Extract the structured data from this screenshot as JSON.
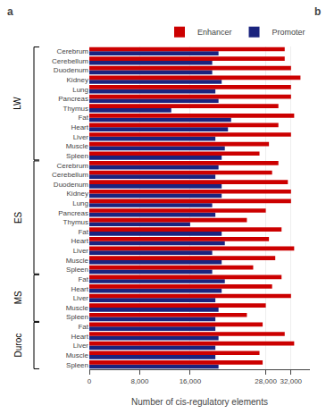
{
  "chart_data": {
    "type": "bar",
    "orientation": "horizontal",
    "categories": [
      "Spleen",
      "Muscle",
      "Liver",
      "Heart",
      "Fat",
      "Spleen",
      "Muscle",
      "Liver",
      "Heart",
      "Fat",
      "Spleen",
      "Muscle",
      "Liver",
      "Heart",
      "Fat",
      "Thymus",
      "Pancreas",
      "Lung",
      "Kidney",
      "Duodenum",
      "Cerebellum",
      "Cerebrum",
      "Spleen",
      "Muscle",
      "Liver",
      "Heart",
      "Fat",
      "Thymus",
      "Pancreas",
      "Lung",
      "Kidney",
      "Duodenum",
      "Cerebellum",
      "Cerebrum"
    ],
    "groups": [
      "Duroc",
      "Duroc",
      "Duroc",
      "Duroc",
      "Duroc",
      "MS",
      "MS",
      "MS",
      "MS",
      "MS",
      "ES",
      "ES",
      "ES",
      "ES",
      "ES",
      "ES",
      "ES",
      "ES",
      "ES",
      "ES",
      "ES",
      "ES",
      "LW",
      "LW",
      "LW",
      "LW",
      "LW",
      "LW",
      "LW",
      "LW",
      "LW",
      "LW",
      "LW",
      "LW"
    ],
    "series": [
      {
        "name": "Enhancer",
        "color": "#CC0000",
        "values": [
          27500,
          27000,
          32500,
          31000,
          27500,
          25000,
          28000,
          32000,
          29000,
          30500,
          26000,
          29500,
          32500,
          28500,
          30500,
          25000,
          28000,
          32000,
          32000,
          31500,
          29000,
          30000,
          27000,
          28500,
          32000,
          30000,
          32500,
          30000,
          32000,
          32000,
          33500,
          32000,
          31000,
          31000
        ]
      },
      {
        "name": "Promoter",
        "color": "#1a237e",
        "values": [
          20500,
          20000,
          20000,
          20500,
          20000,
          20000,
          20500,
          20000,
          21000,
          21500,
          19500,
          21000,
          19500,
          21500,
          21000,
          16000,
          20000,
          19500,
          21000,
          21000,
          20000,
          20500,
          21000,
          21500,
          20000,
          22000,
          22500,
          13000,
          20500,
          20000,
          21000,
          19500,
          19500,
          20500
        ]
      }
    ],
    "x_label": "Number of cis-regulatory elements",
    "xlim": [
      0,
      35000
    ],
    "xticks": [
      0,
      {
        "value": 8000,
        "label": "8,000"
      },
      {
        "value": 16000,
        "label": "16,000"
      },
      {
        "value": 28000,
        "label": "28,000"
      },
      {
        "value": 32000,
        "label": "32,000"
      }
    ],
    "grid": true,
    "legend": "upper right",
    "annotations": [
      "a",
      "b"
    ]
  }
}
